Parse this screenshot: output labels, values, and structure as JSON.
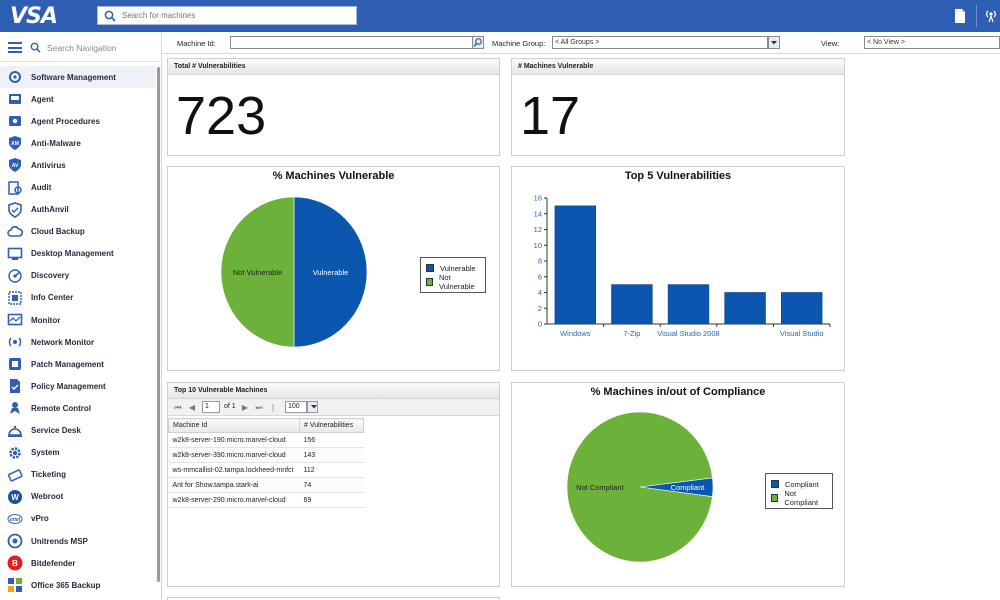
{
  "app": {
    "logo": "VSA",
    "search_placeholder": "Search for machines"
  },
  "sidebar": {
    "search_placeholder": "Search Navigation",
    "items": [
      {
        "label": "Software Management",
        "icon": "software-icon",
        "active": true
      },
      {
        "label": "Agent",
        "icon": "agent-icon"
      },
      {
        "label": "Agent Procedures",
        "icon": "agent-procedures-icon"
      },
      {
        "label": "Anti-Malware",
        "icon": "anti-malware-icon"
      },
      {
        "label": "Antivirus",
        "icon": "antivirus-icon"
      },
      {
        "label": "Audit",
        "icon": "audit-icon"
      },
      {
        "label": "AuthAnvil",
        "icon": "shield-icon"
      },
      {
        "label": "Cloud Backup",
        "icon": "cloud-icon"
      },
      {
        "label": "Desktop Management",
        "icon": "desktop-icon"
      },
      {
        "label": "Discovery",
        "icon": "discovery-icon"
      },
      {
        "label": "Info Center",
        "icon": "info-center-icon"
      },
      {
        "label": "Monitor",
        "icon": "monitor-icon"
      },
      {
        "label": "Network Monitor",
        "icon": "network-icon"
      },
      {
        "label": "Patch Management",
        "icon": "patch-icon"
      },
      {
        "label": "Policy Management",
        "icon": "policy-icon"
      },
      {
        "label": "Remote Control",
        "icon": "remote-control-icon"
      },
      {
        "label": "Service Desk",
        "icon": "service-desk-icon"
      },
      {
        "label": "System",
        "icon": "gear-icon"
      },
      {
        "label": "Ticketing",
        "icon": "ticket-icon"
      },
      {
        "label": "Webroot",
        "icon": "webroot-icon"
      },
      {
        "label": "vPro",
        "icon": "intel-icon"
      },
      {
        "label": "Unitrends MSP",
        "icon": "unitrends-icon"
      },
      {
        "label": "Bitdefender",
        "icon": "bitdefender-icon"
      },
      {
        "label": "Office 365 Backup",
        "icon": "office-backup-icon"
      }
    ]
  },
  "filters": {
    "machine_id_label": "Machine Id:",
    "machine_id_value": "",
    "machine_group_label": "Machine Group:",
    "machine_group_value": "< All Groups >",
    "view_label": "View:",
    "view_value": "< No View >"
  },
  "panels": {
    "total_vulnerabilities": {
      "title": "Total # Vulnerabilities",
      "value": "723"
    },
    "machines_vulnerable": {
      "title": "# Machines Vulnerable",
      "value": "17"
    },
    "top10": {
      "title": "Top 10 Vulnerable Machines",
      "page": "1",
      "of_pages": "of 1",
      "page_size": "100",
      "columns": [
        "Machine Id",
        "# Vulnerabilities"
      ],
      "rows": [
        [
          "w2k8-server-190.micro.marvel-cloud",
          "156"
        ],
        [
          "w2k8-server-390.micro.marvel-cloud",
          "143"
        ],
        [
          "ws-mmcallist-02.tampa.lockheed-mnfct",
          "112"
        ],
        [
          "Ant for Show.tampa.stark-ai",
          "74"
        ],
        [
          "w2k8-server-290.micro.marvel-cloud",
          "69"
        ]
      ]
    }
  },
  "colors": {
    "brand": "#2f5fb5",
    "vulnerable": "#0b57b0",
    "not_vulnerable": "#6cb23a"
  },
  "chart_data": [
    {
      "type": "pie",
      "title": "% Machines Vulnerable",
      "slices": [
        {
          "label": "Vulnerable",
          "value": 50
        },
        {
          "label": "Not Vulnerable",
          "value": 50
        }
      ],
      "legend": [
        "Vulnerable",
        "Not Vulnerable"
      ],
      "legend_position": "right"
    },
    {
      "type": "bar",
      "title": "Top 5 Vulnerabilities",
      "categories": [
        "Windows",
        "7-Zip",
        "Visual Studio 2008",
        "",
        "Visual Studio"
      ],
      "values": [
        15,
        5,
        5,
        4,
        4
      ],
      "ylim": [
        0,
        16
      ],
      "yticks": [
        0,
        2,
        4,
        6,
        8,
        10,
        12,
        14,
        16
      ]
    },
    {
      "type": "pie",
      "title": "% Machines in/out of Compliance",
      "slices": [
        {
          "label": "Compliant",
          "value": 4
        },
        {
          "label": "Not Compliant",
          "value": 96
        }
      ],
      "legend": [
        "Compliant",
        "Not Compliant"
      ],
      "legend_position": "right"
    }
  ]
}
